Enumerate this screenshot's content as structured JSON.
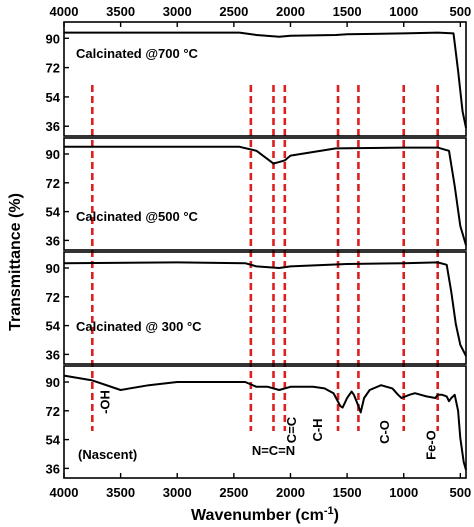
{
  "chart_data": {
    "type": "line",
    "xlabel": "Wavenumber (cm",
    "xlabel_superscript": "-1",
    "xlabel_suffix": ")",
    "ylabel": "Transmittance (%)",
    "x_axis": {
      "range": [
        4000,
        450
      ],
      "reversed": true,
      "tick_labels": [
        "4000",
        "3500",
        "3000",
        "2500",
        "2000",
        "1500",
        "1000",
        "500"
      ],
      "tick_values": [
        4000,
        3500,
        3000,
        2500,
        2000,
        1500,
        1000,
        500
      ]
    },
    "y_axis": {
      "range": [
        30,
        100
      ],
      "tick_labels": [
        "90",
        "72",
        "54",
        "36"
      ],
      "tick_values": [
        90,
        72,
        54,
        36
      ]
    },
    "panels": [
      {
        "label": "Calcinated @700 °C",
        "x": [
          4000,
          2450,
          2300,
          2100,
          2000,
          1600,
          1500,
          1000,
          700,
          560,
          520,
          480,
          450
        ],
        "y": [
          93.5,
          93.5,
          92,
          91,
          91.5,
          92,
          92.5,
          93,
          93.5,
          93,
          70,
          45,
          35
        ]
      },
      {
        "label": "Calcinated @500 °C",
        "x": [
          4000,
          2450,
          2300,
          2150,
          2050,
          2000,
          1600,
          1000,
          700,
          600,
          550,
          500,
          450
        ],
        "y": [
          94.5,
          94.5,
          92,
          84,
          86,
          89,
          93.5,
          94,
          94,
          92,
          70,
          45,
          33
        ]
      },
      {
        "label": "Calcinated @ 300 °C",
        "x": [
          4000,
          3000,
          2400,
          2300,
          2100,
          2000,
          1500,
          1000,
          700,
          620,
          580,
          540,
          500,
          450
        ],
        "y": [
          93,
          93.5,
          93,
          91,
          90,
          91,
          92.5,
          93,
          93.5,
          92,
          75,
          55,
          42,
          35
        ]
      },
      {
        "label": "(Nascent)",
        "x": [
          4000,
          3750,
          3500,
          3250,
          3000,
          2800,
          2600,
          2400,
          2300,
          2200,
          2100,
          2000,
          1900,
          1800,
          1700,
          1620,
          1560,
          1540,
          1500,
          1460,
          1440,
          1400,
          1380,
          1350,
          1300,
          1200,
          1100,
          1050,
          1020,
          950,
          900,
          800,
          720,
          700,
          660,
          620,
          600,
          580,
          550,
          520,
          500,
          470,
          450
        ],
        "y": [
          94,
          91,
          85,
          88,
          90,
          90,
          90,
          90,
          87,
          87,
          85,
          87,
          87,
          87,
          86,
          83,
          75,
          74,
          80,
          84,
          82,
          75,
          71,
          80,
          85,
          88,
          86,
          82,
          80,
          82,
          83,
          81,
          80,
          82,
          82,
          81,
          78,
          80,
          82,
          72,
          55,
          40,
          35
        ]
      }
    ],
    "assignment_lines_x": [
      3750,
      2350,
      2150,
      2050,
      1580,
      1400,
      1000,
      700
    ],
    "annotations": [
      {
        "text": "-OH",
        "x": 3600
      },
      {
        "text": "N=C=N",
        "x": 2150
      },
      {
        "text": "C=C",
        "x": 1950
      },
      {
        "text": "C-H",
        "x": 1720
      },
      {
        "text": "C-O",
        "x": 1130
      },
      {
        "text": "Fe-O",
        "x": 720
      }
    ],
    "colors": {
      "series": "#000000",
      "assignment_lines": "#dd1f1f",
      "frame": "#000000"
    },
    "grid": false,
    "legend": "none"
  }
}
